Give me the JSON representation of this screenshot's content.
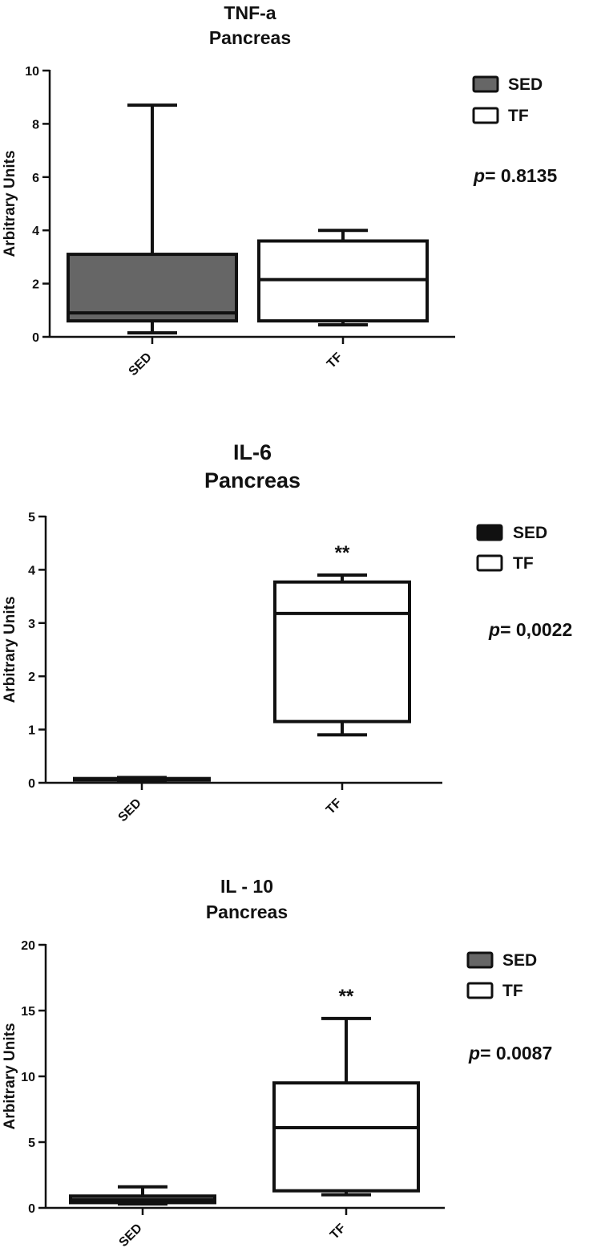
{
  "chart_data": [
    {
      "type": "box",
      "title": "TNF-a",
      "subtitle": "Pancreas",
      "ylabel": "Arbitrary Units",
      "xlabel": "",
      "ylim": [
        0,
        10
      ],
      "yticks": [
        "0",
        "2",
        "4",
        "6",
        "8",
        "10"
      ],
      "categories": [
        "SED",
        "TF"
      ],
      "series": [
        {
          "name": "SED",
          "fill": "#666666",
          "min": 0.15,
          "q1": 0.6,
          "median": 0.9,
          "q3": 3.1,
          "max": 8.7
        },
        {
          "name": "TF",
          "fill": "#ffffff",
          "min": 0.45,
          "q1": 0.6,
          "median": 2.15,
          "q3": 3.6,
          "max": 4.0
        }
      ],
      "legend": [
        {
          "label": "SED",
          "color": "#666666"
        },
        {
          "label": "TF",
          "color": "#ffffff"
        }
      ],
      "legend_position": "top-right",
      "annotations": [],
      "p_label": "p",
      "p_value": "= 0.8135"
    },
    {
      "type": "box",
      "title": "IL-6",
      "subtitle": "Pancreas",
      "ylabel": "Arbitrary Units",
      "xlabel": "",
      "ylim": [
        0,
        5
      ],
      "yticks": [
        "0",
        "1",
        "2",
        "3",
        "4",
        "5"
      ],
      "categories": [
        "SED",
        "TF"
      ],
      "series": [
        {
          "name": "SED",
          "fill": "#111111",
          "min": 0.04,
          "q1": 0.05,
          "median": 0.06,
          "q3": 0.08,
          "max": 0.1
        },
        {
          "name": "TF",
          "fill": "#ffffff",
          "min": 0.9,
          "q1": 1.15,
          "median": 3.18,
          "q3": 3.77,
          "max": 3.9
        }
      ],
      "legend": [
        {
          "label": "SED",
          "color": "#111111"
        },
        {
          "label": "TF",
          "color": "#ffffff"
        }
      ],
      "legend_position": "top-right",
      "annotations": [
        {
          "category": "TF",
          "text": "**"
        }
      ],
      "p_label": "p",
      "p_value": "= 0,0022"
    },
    {
      "type": "box",
      "title": "IL - 10",
      "subtitle": "Pancreas",
      "ylabel": "Arbitrary Units",
      "xlabel": "",
      "ylim": [
        0,
        20
      ],
      "yticks": [
        "0",
        "5",
        "10",
        "15",
        "20"
      ],
      "categories": [
        "SED",
        "TF"
      ],
      "series": [
        {
          "name": "SED",
          "fill": "#666666",
          "min": 0.3,
          "q1": 0.4,
          "median": 0.6,
          "q3": 0.9,
          "max": 1.6
        },
        {
          "name": "TF",
          "fill": "#ffffff",
          "min": 1.0,
          "q1": 1.3,
          "median": 6.1,
          "q3": 9.5,
          "max": 14.4
        }
      ],
      "legend": [
        {
          "label": "SED",
          "color": "#666666"
        },
        {
          "label": "TF",
          "color": "#ffffff"
        }
      ],
      "legend_position": "top-right",
      "annotations": [
        {
          "category": "TF",
          "text": "**"
        }
      ],
      "p_label": "p",
      "p_value": "= 0.0087"
    }
  ]
}
